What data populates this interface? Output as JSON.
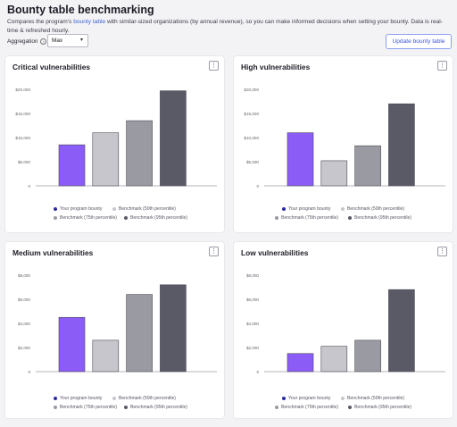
{
  "header": {
    "title": "Bounty table benchmarking",
    "desc_before": "Compares the program's ",
    "desc_link": "bounty table",
    "desc_after": " with similar-sized organizations (by annual revenue), so you can make informed decisions when setting your bounty. Data is real-time & refreshed hourly.",
    "aggregation_label": "Aggregation",
    "aggregation_value": "Max",
    "update_button": "Update bounty table"
  },
  "legend": [
    {
      "label": "Your program bounty",
      "color": "#2b2ba8"
    },
    {
      "label": "Benchmark (50th percentile)",
      "color": "#c6c6cc"
    },
    {
      "label": "Benchmark (75th percentile)",
      "color": "#9a9aa2"
    },
    {
      "label": "Benchmark (95th percentile)",
      "color": "#5a5a66"
    }
  ],
  "chart_data": [
    {
      "type": "bar",
      "title": "Critical vulnerabilities",
      "categories": [
        "Your program bounty",
        "Benchmark (50th percentile)",
        "Benchmark (75th percentile)",
        "Benchmark (95th percentile)"
      ],
      "values": [
        8500,
        11000,
        13500,
        19700
      ],
      "ylim": [
        0,
        20000
      ],
      "yticks": [
        "0",
        "$5,000",
        "$10,000",
        "$15,000",
        "$20,000"
      ],
      "tickvals": [
        0,
        5000,
        10000,
        15000,
        20000
      ],
      "colors": [
        "#8b5cf6",
        "#c6c6cc",
        "#9a9aa2",
        "#5a5a66"
      ]
    },
    {
      "type": "bar",
      "title": "High vulnerabilities",
      "categories": [
        "Your program bounty",
        "Benchmark (50th percentile)",
        "Benchmark (75th percentile)",
        "Benchmark (95th percentile)"
      ],
      "values": [
        11000,
        5200,
        8300,
        17000
      ],
      "ylim": [
        0,
        20000
      ],
      "yticks": [
        "0",
        "$5,000",
        "$10,000",
        "$15,000",
        "$20,000"
      ],
      "tickvals": [
        0,
        5000,
        10000,
        15000,
        20000
      ],
      "colors": [
        "#8b5cf6",
        "#c6c6cc",
        "#9a9aa2",
        "#5a5a66"
      ]
    },
    {
      "type": "bar",
      "title": "Medium vulnerabilities",
      "categories": [
        "Your program bounty",
        "Benchmark (50th percentile)",
        "Benchmark (75th percentile)",
        "Benchmark (95th percentile)"
      ],
      "values": [
        4500,
        2600,
        6400,
        7200
      ],
      "ylim": [
        0,
        8000
      ],
      "yticks": [
        "0",
        "$2,000",
        "$4,000",
        "$6,000",
        "$8,000"
      ],
      "tickvals": [
        0,
        2000,
        4000,
        6000,
        8000
      ],
      "colors": [
        "#8b5cf6",
        "#c6c6cc",
        "#9a9aa2",
        "#5a5a66"
      ]
    },
    {
      "type": "bar",
      "title": "Low vulnerabilities",
      "categories": [
        "Your program bounty",
        "Benchmark (50th percentile)",
        "Benchmark (75th percentile)",
        "Benchmark (95th percentile)"
      ],
      "values": [
        1500,
        2100,
        2600,
        6800
      ],
      "ylim": [
        0,
        8000
      ],
      "yticks": [
        "0",
        "$2,000",
        "$4,000",
        "$6,000",
        "$8,000"
      ],
      "tickvals": [
        0,
        2000,
        4000,
        6000,
        8000
      ],
      "colors": [
        "#8b5cf6",
        "#c6c6cc",
        "#9a9aa2",
        "#5a5a66"
      ]
    }
  ]
}
